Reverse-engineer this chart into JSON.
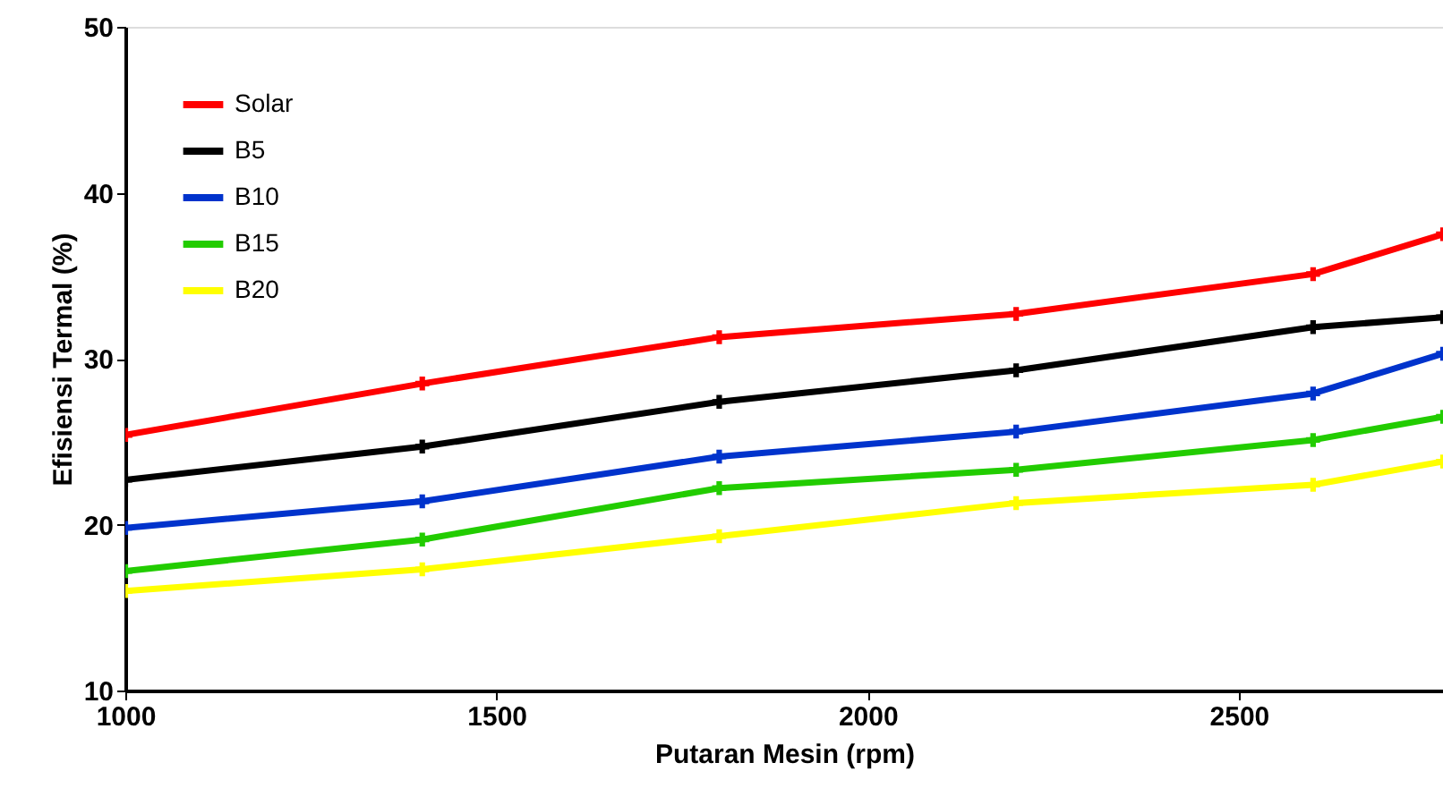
{
  "chart_data": {
    "type": "line",
    "xlabel": "Putaran Mesin  (rpm)",
    "ylabel": "Efisiensi Termal (%)",
    "x": [
      1000,
      1400,
      1800,
      2200,
      2600,
      2775
    ],
    "series": [
      {
        "name": "Solar",
        "color": "#ff0000",
        "values": [
          25.4,
          28.5,
          31.3,
          32.7,
          35.1,
          37.5
        ]
      },
      {
        "name": "B5",
        "color": "#000000",
        "values": [
          22.7,
          24.7,
          27.4,
          29.3,
          31.9,
          32.5
        ]
      },
      {
        "name": "B10",
        "color": "#0033cc",
        "values": [
          19.8,
          21.4,
          24.1,
          25.6,
          27.9,
          30.3
        ]
      },
      {
        "name": "B15",
        "color": "#22cc00",
        "values": [
          17.2,
          19.1,
          22.2,
          23.3,
          25.1,
          26.5
        ]
      },
      {
        "name": "B20",
        "color": "#ffff00",
        "values": [
          16.0,
          17.3,
          19.3,
          21.3,
          22.4,
          23.8
        ]
      }
    ],
    "xlim": [
      1000,
      2775
    ],
    "xticks": [
      1000,
      1500,
      2000,
      2500
    ],
    "ylim": [
      10,
      50
    ],
    "yticks": [
      10,
      20,
      30,
      40,
      50
    ],
    "grid": false,
    "legend": "top left",
    "marker": "cross",
    "line_style": "solid"
  }
}
